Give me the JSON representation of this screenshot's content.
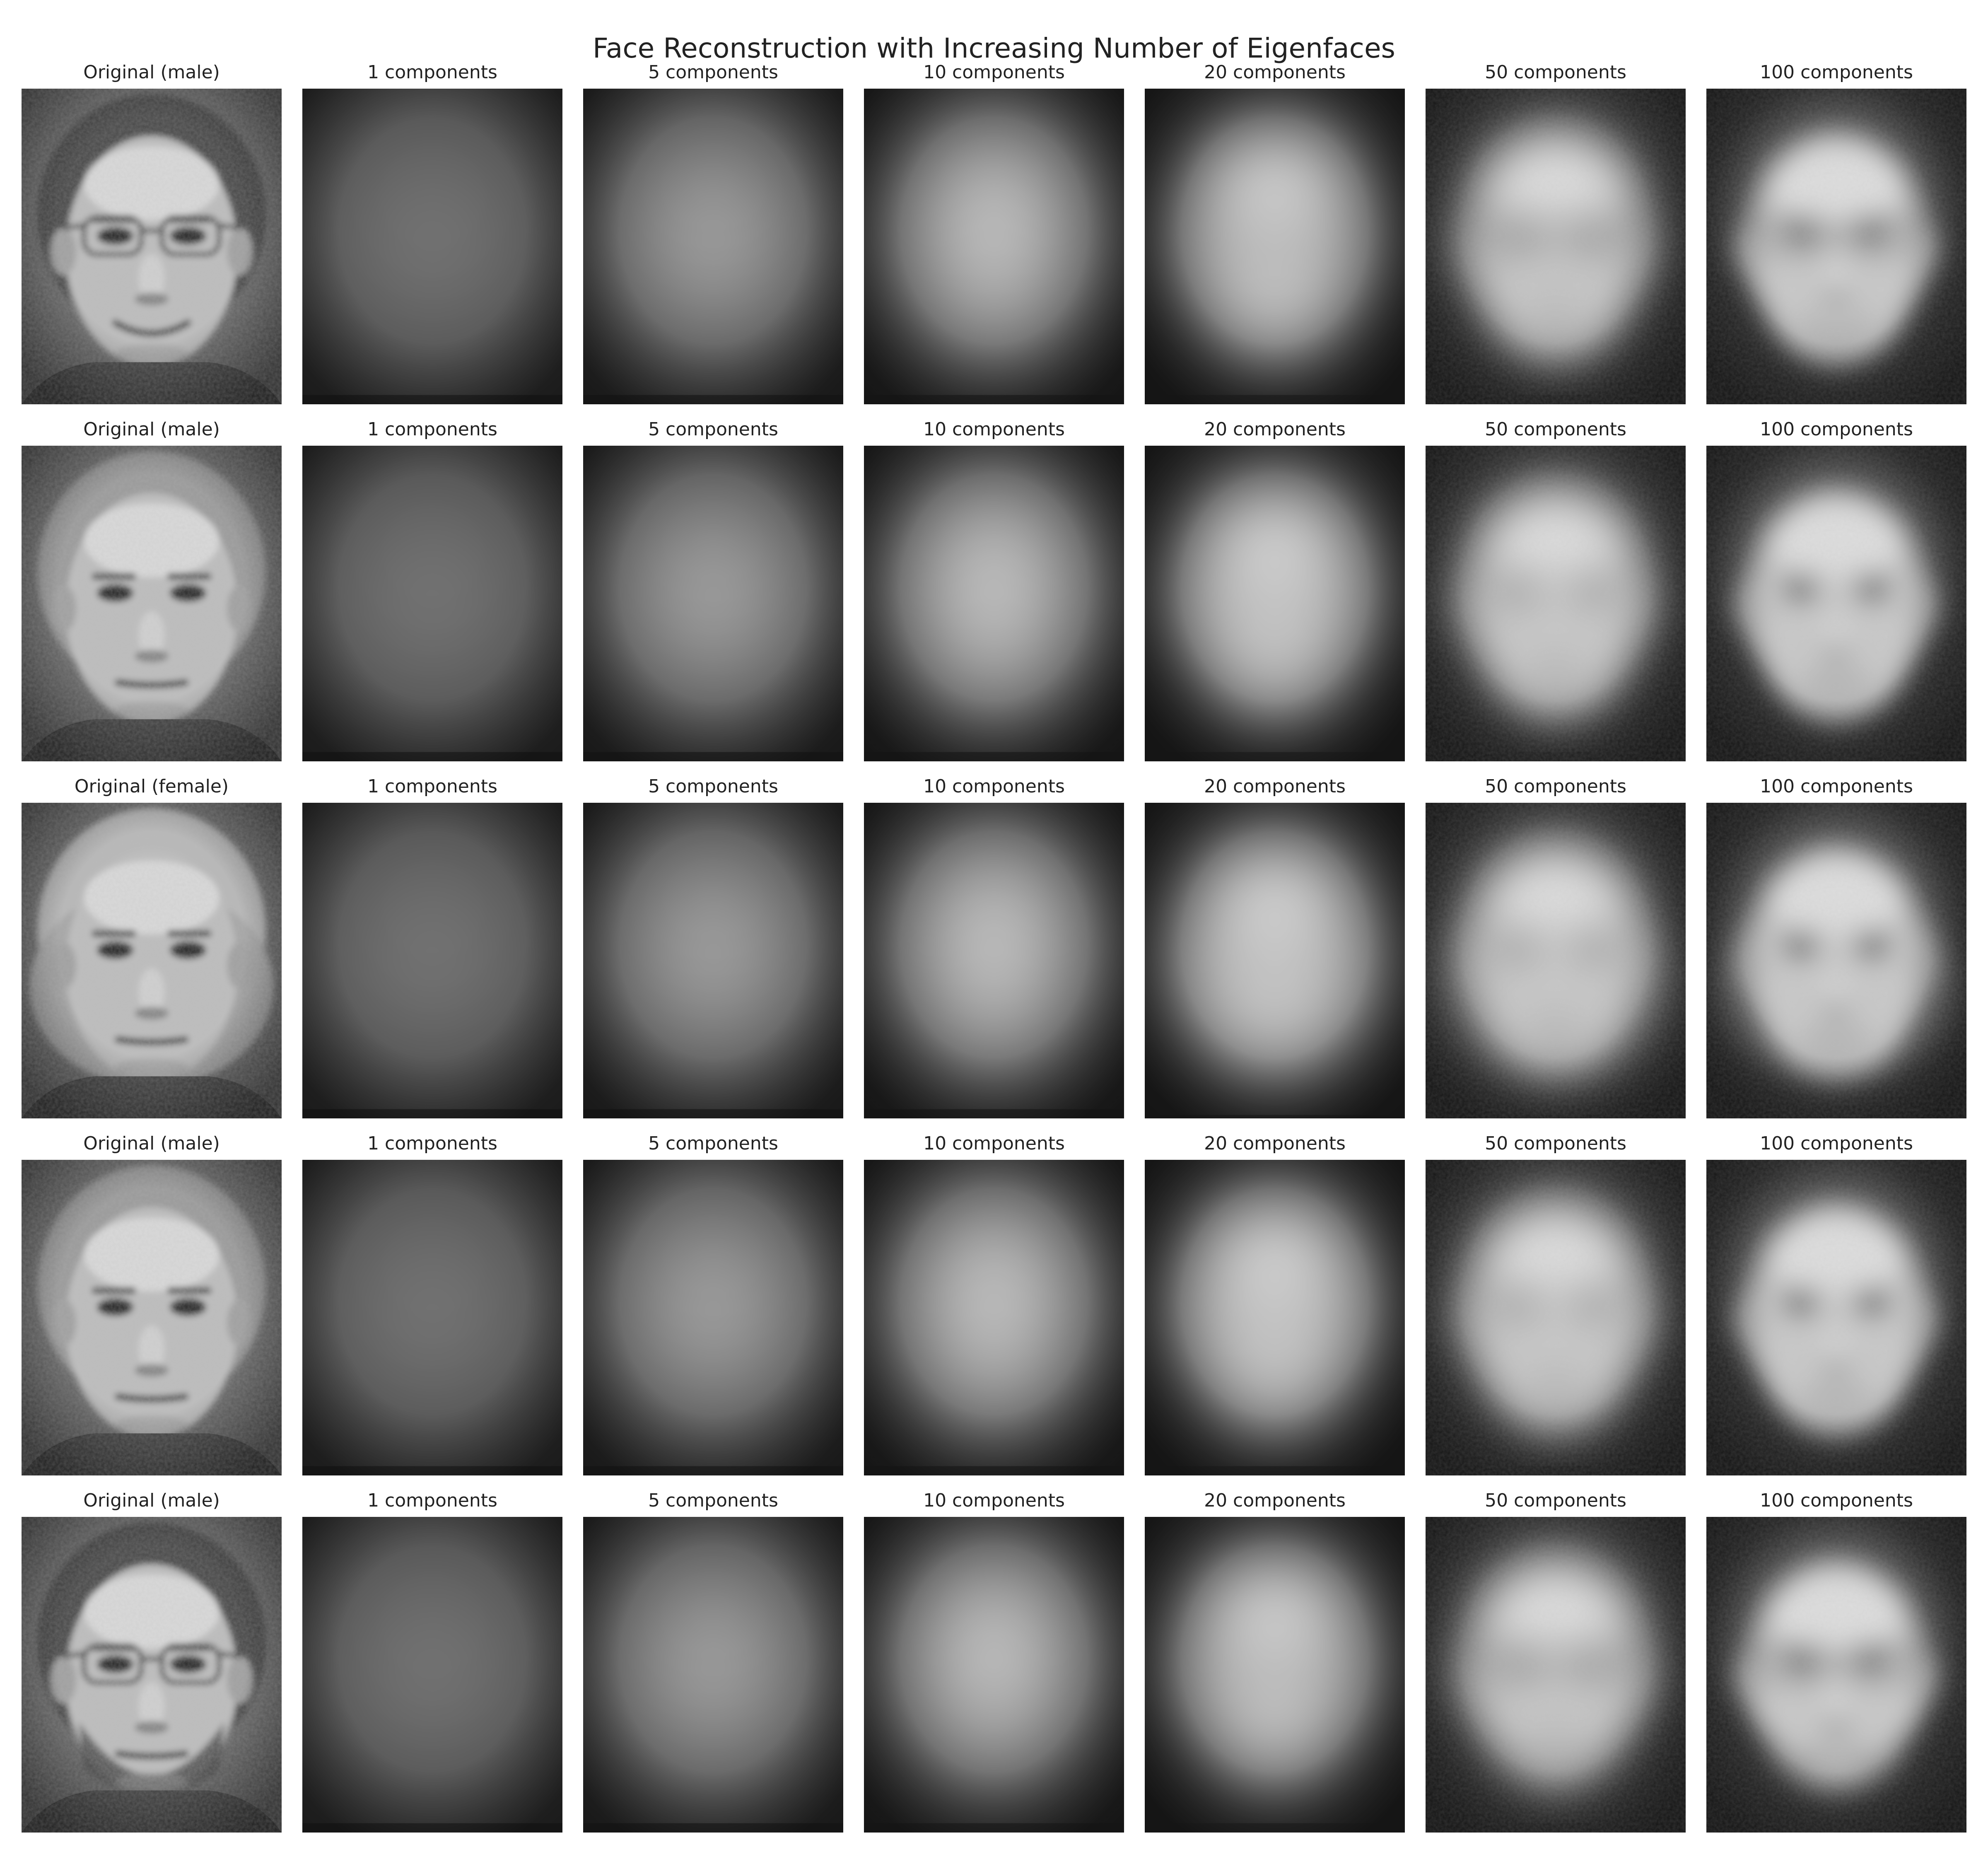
{
  "title": "Face Reconstruction with Increasing Number of Eigenfaces",
  "rows": [
    {
      "original_label": "Original (male)",
      "panels": [
        "1 components",
        "5 components",
        "10 components",
        "20 components",
        "50 components",
        "100 components"
      ],
      "features": {
        "glasses": true,
        "beard": false,
        "hair": "short",
        "expression": "smile"
      }
    },
    {
      "original_label": "Original (male)",
      "panels": [
        "1 components",
        "5 components",
        "10 components",
        "20 components",
        "50 components",
        "100 components"
      ],
      "features": {
        "glasses": false,
        "beard": false,
        "hair": "wavy",
        "expression": "neutral"
      }
    },
    {
      "original_label": "Original (female)",
      "panels": [
        "1 components",
        "5 components",
        "10 components",
        "20 components",
        "50 components",
        "100 components"
      ],
      "features": {
        "glasses": false,
        "beard": false,
        "hair": "bob",
        "expression": "neutral"
      }
    },
    {
      "original_label": "Original (male)",
      "panels": [
        "1 components",
        "5 components",
        "10 components",
        "20 components",
        "50 components",
        "100 components"
      ],
      "features": {
        "glasses": false,
        "beard": false,
        "hair": "wavy",
        "expression": "neutral"
      }
    },
    {
      "original_label": "Original (male)",
      "panels": [
        "1 components",
        "5 components",
        "10 components",
        "20 components",
        "50 components",
        "100 components"
      ],
      "features": {
        "glasses": true,
        "beard": true,
        "hair": "short",
        "expression": "neutral"
      }
    }
  ]
}
